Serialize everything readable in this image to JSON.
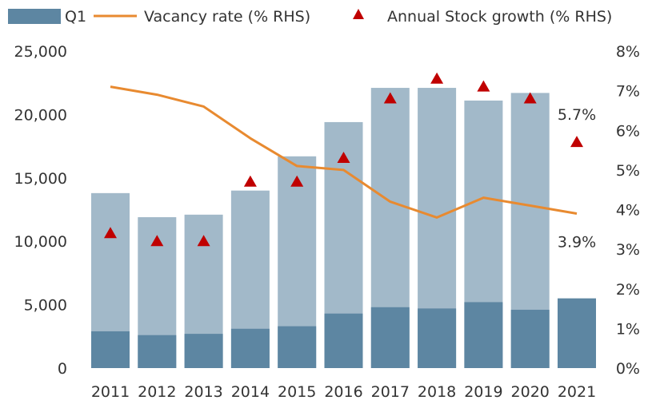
{
  "chart_data": {
    "type": "bar",
    "title": "",
    "xlabel": "",
    "ylabel": "",
    "categories": [
      "2011",
      "2012",
      "2013",
      "2014",
      "2015",
      "2016",
      "2017",
      "2018",
      "2019",
      "2020",
      "2021"
    ],
    "series": [
      {
        "name": "Q1",
        "kind": "bar",
        "axis": "left",
        "color": "#5d86a2",
        "values": [
          2900,
          2600,
          2700,
          3100,
          3300,
          4300,
          4800,
          4700,
          5200,
          4600,
          5500
        ]
      },
      {
        "name": "",
        "kind": "bar",
        "axis": "left",
        "color": "#a2b9c9",
        "values": [
          13800,
          11900,
          12100,
          14000,
          16700,
          19400,
          22100,
          22100,
          21100,
          21700,
          null
        ]
      },
      {
        "name": "Vacancy rate (% RHS)",
        "kind": "line",
        "axis": "right",
        "color": "#e88a30",
        "values": [
          7.1,
          6.9,
          6.6,
          5.8,
          5.1,
          5.0,
          4.2,
          3.8,
          4.3,
          4.1,
          3.9
        ]
      },
      {
        "name": "Annual Stock growth (% RHS)",
        "kind": "marker",
        "axis": "right",
        "color": "#c00000",
        "values": [
          3.4,
          3.2,
          3.2,
          4.7,
          4.7,
          5.3,
          6.8,
          7.3,
          7.1,
          6.8,
          5.7
        ]
      }
    ],
    "ylim": [
      0,
      25000
    ],
    "y2lim": [
      0,
      8
    ],
    "yticks": [
      "0",
      "5,000",
      "10,000",
      "15,000",
      "20,000",
      "25,000"
    ],
    "y2ticks": [
      "0%",
      "1%",
      "2%",
      "3%",
      "4%",
      "5%",
      "6%",
      "7%",
      "8%"
    ],
    "annotations": [
      {
        "text": "5.7%",
        "series": "Annual Stock growth (% RHS)",
        "category": "2021"
      },
      {
        "text": "3.9%",
        "series": "Vacancy rate (% RHS)",
        "category": "2021"
      }
    ],
    "legend": {
      "position": "top",
      "items": [
        "Q1",
        "Vacancy rate (% RHS)",
        "Annual Stock growth (% RHS)"
      ]
    },
    "grid": false
  }
}
